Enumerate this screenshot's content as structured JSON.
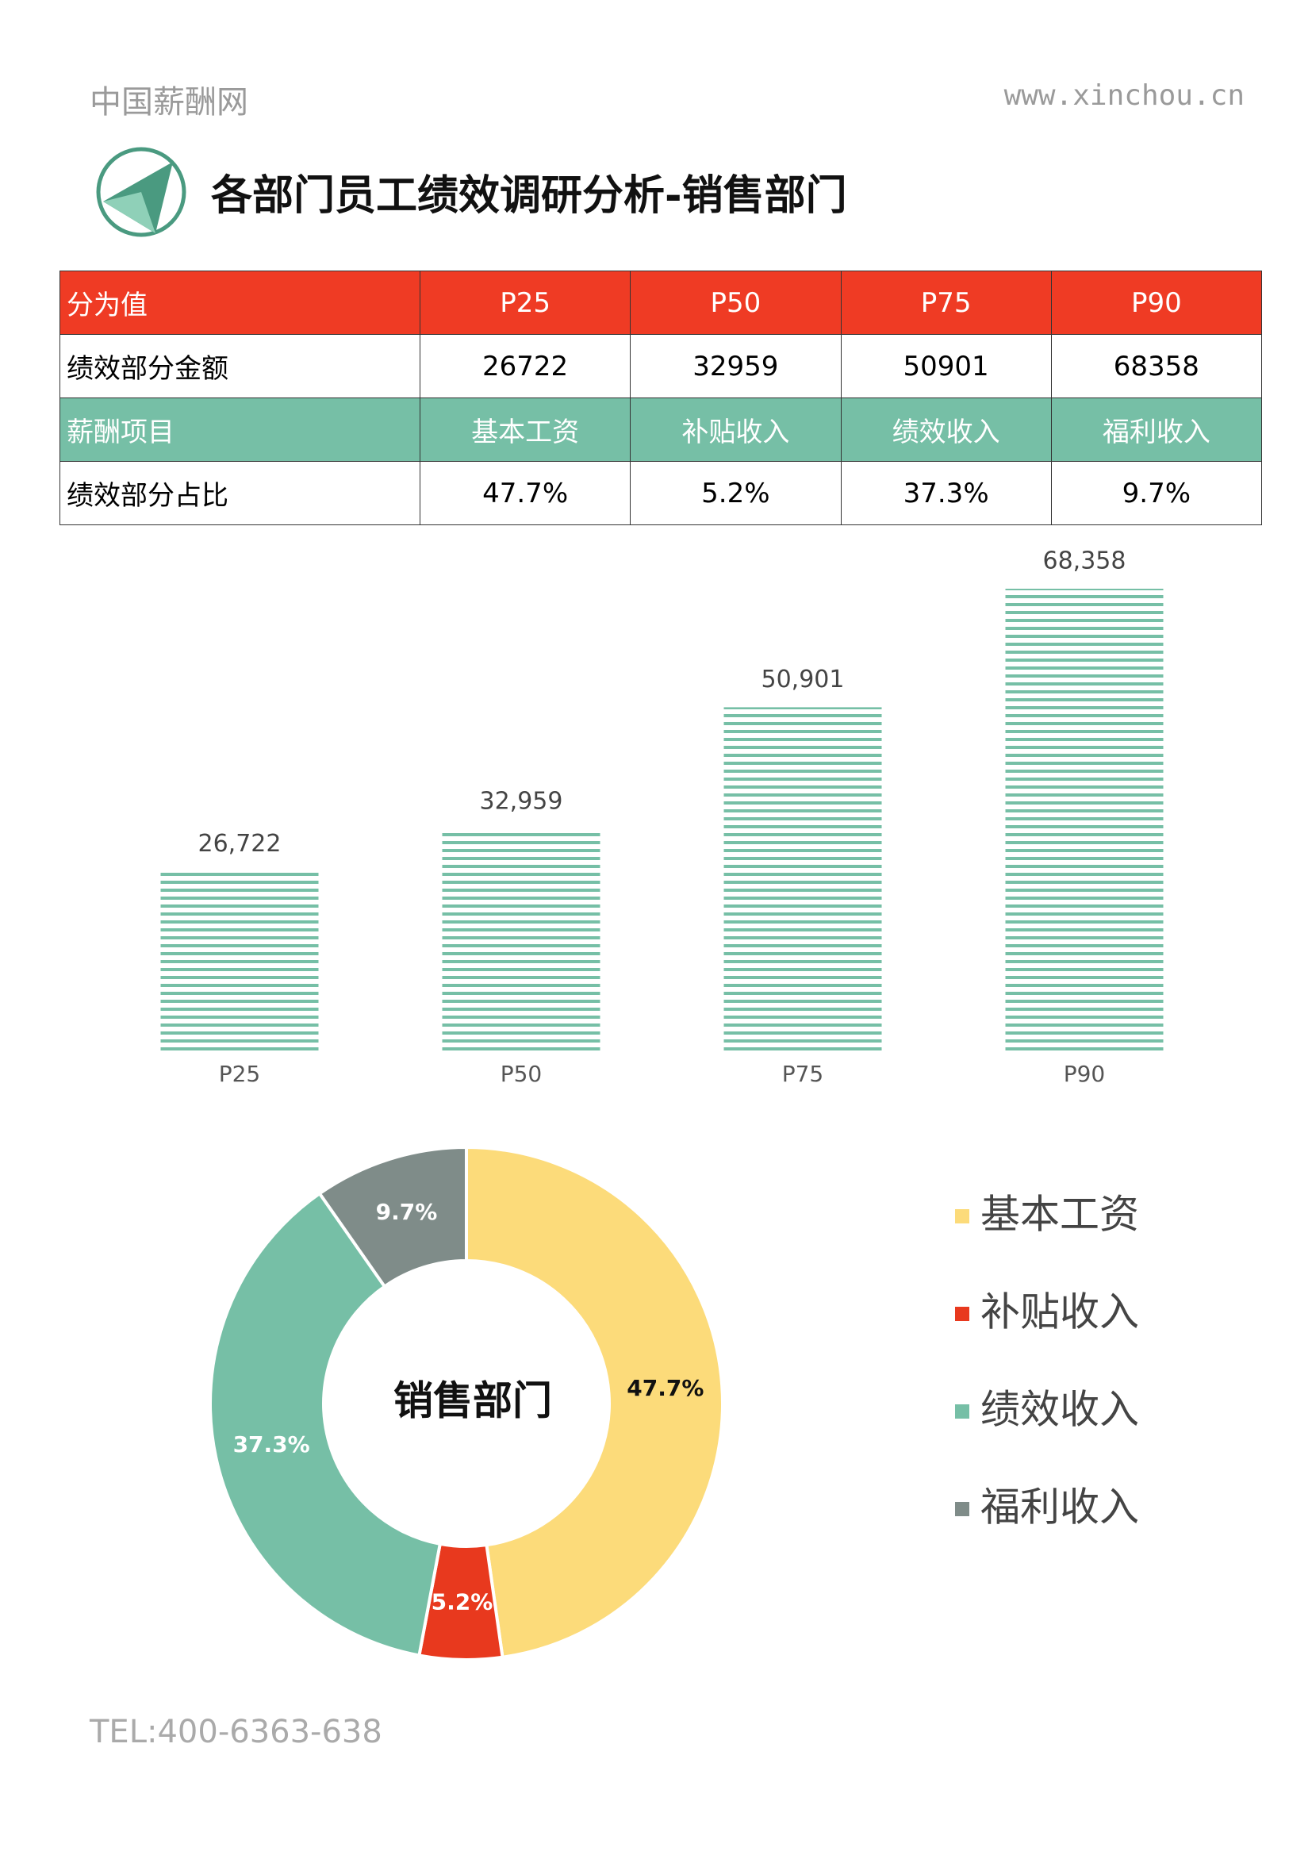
{
  "header": {
    "site": "中国薪酬网",
    "url": "www.xinchou.cn",
    "title": "各部门员工绩效调研分析-销售部门"
  },
  "table": {
    "rows": [
      [
        "分为值",
        "P25",
        "P50",
        "P75",
        "P90"
      ],
      [
        "绩效部分金额",
        26722,
        32959,
        50901,
        68358
      ],
      [
        "薪酬项目",
        "基本工资",
        "补贴收入",
        "绩效收入",
        "福利收入"
      ],
      [
        "绩效部分占比",
        "47.7%",
        "5.2%",
        "37.3%",
        "9.7%"
      ]
    ]
  },
  "chart_data": [
    {
      "type": "bar",
      "categories": [
        "P25",
        "P50",
        "P75",
        "P90"
      ],
      "values": [
        26722,
        32959,
        50901,
        68358
      ],
      "value_labels": [
        "26,722",
        "32,959",
        "50,901",
        "68,358"
      ],
      "color": "#76bfa6"
    },
    {
      "type": "donut",
      "title": "销售部门",
      "categories": [
        "基本工资",
        "补贴收入",
        "绩效收入",
        "福利收入"
      ],
      "values": [
        47.7,
        5.2,
        37.3,
        9.7
      ],
      "value_labels": [
        "47.7%",
        "5.2%",
        "37.3%",
        "9.7%"
      ],
      "colors": [
        "#fcdb7a",
        "#e8391e",
        "#76bfa6",
        "#7f8c89"
      ]
    }
  ],
  "footer": {
    "tel": "TEL:400-6363-638"
  }
}
